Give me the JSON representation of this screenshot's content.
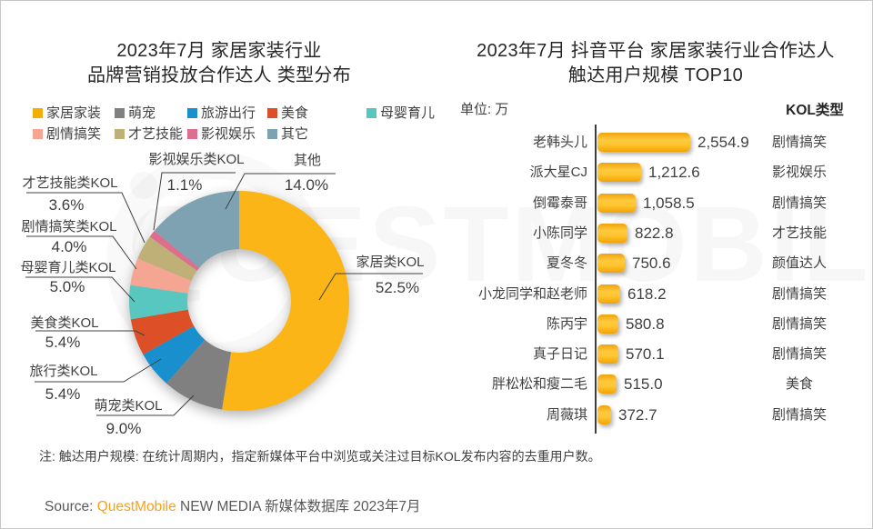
{
  "page": {
    "watermark_text": "QUESTMOBILE"
  },
  "left_panel": {
    "title_line1": "2023年7月 家居家装行业",
    "title_line2": "品牌营销投放合作达人 类型分布",
    "legend": [
      {
        "label": "家居家装",
        "color": "#F2AE07"
      },
      {
        "label": "萌宠",
        "color": "#808080"
      },
      {
        "label": "旅游出行",
        "color": "#1A8FCE"
      },
      {
        "label": "美食",
        "color": "#DD4F27"
      },
      {
        "label": "母婴育儿",
        "color": "#58C7C0"
      },
      {
        "label": "剧情搞笑",
        "color": "#F5A693"
      },
      {
        "label": "才艺技能",
        "color": "#BFB077"
      },
      {
        "label": "影视娱乐",
        "color": "#DE6E8D"
      },
      {
        "label": "其它",
        "color": "#7EA2B2"
      }
    ]
  },
  "right_panel": {
    "title_line1": "2023年7月 抖音平台 家居家装行业合作达人",
    "title_line2": "触达用户规模 TOP10",
    "unit_label": "单位: 万",
    "type_header": "KOL类型"
  },
  "chart_data": [
    {
      "type": "pie",
      "subtype": "donut",
      "title": "2023年7月 家居家装行业 品牌营销投放合作达人 类型分布",
      "start_angle_deg": 0,
      "direction": "clockwise",
      "slices": [
        {
          "label": "家居类KOL",
          "pct_label": "52.5%",
          "value": 52.5,
          "color": "#FBB517"
        },
        {
          "label": "萌宠类KOL",
          "pct_label": "9.0%",
          "value": 9.0,
          "color": "#808080"
        },
        {
          "label": "旅行类KOL",
          "pct_label": "5.4%",
          "value": 5.4,
          "color": "#1A8FCE"
        },
        {
          "label": "美食类KOL",
          "pct_label": "5.4%",
          "value": 5.4,
          "color": "#DD4F27"
        },
        {
          "label": "母婴育儿类KOL",
          "pct_label": "5.0%",
          "value": 5.0,
          "color": "#58C7C0"
        },
        {
          "label": "剧情搞笑类KOL",
          "pct_label": "4.0%",
          "value": 4.0,
          "color": "#F5A693"
        },
        {
          "label": "才艺技能类KOL",
          "pct_label": "3.6%",
          "value": 3.6,
          "color": "#BFB077"
        },
        {
          "label": "影视娱乐类KOL",
          "pct_label": "1.1%",
          "value": 1.1,
          "color": "#DE6E8D"
        },
        {
          "label": "其他",
          "pct_label": "14.0%",
          "value": 14.0,
          "color": "#7EA2B2"
        }
      ]
    },
    {
      "type": "bar",
      "orientation": "horizontal",
      "title": "2023年7月 抖音平台 家居家装行业合作达人 触达用户规模 TOP10",
      "unit": "万",
      "xlim": [
        0,
        2554.9
      ],
      "bar_color": "#FBB517",
      "categories": [
        "老韩头儿",
        "派大星CJ",
        "倒霉泰哥",
        "小陈同学",
        "夏冬冬",
        "小龙同学和赵老师",
        "陈丙宇",
        "真子日记",
        "胖松松和瘦二毛",
        "周薇琪"
      ],
      "values": [
        2554.9,
        1212.6,
        1058.5,
        822.8,
        750.6,
        618.2,
        580.8,
        570.1,
        515.0,
        372.7
      ],
      "value_labels": [
        "2,554.9",
        "1,212.6",
        "1,058.5",
        "822.8",
        "750.6",
        "618.2",
        "580.8",
        "570.1",
        "515.0",
        "372.7"
      ],
      "kol_types": [
        "剧情搞笑",
        "影视娱乐",
        "剧情搞笑",
        "才艺技能",
        "颜值达人",
        "剧情搞笑",
        "剧情搞笑",
        "剧情搞笑",
        "美食",
        "剧情搞笑"
      ]
    }
  ],
  "footer": {
    "note": "注: 触达用户规模: 在统计周期内，指定新媒体平台中浏览或关注过目标KOL发布内容的去重用户数。",
    "source_prefix": "Source: ",
    "source_brand": "QuestMobile",
    "source_rest": " NEW MEDIA 新媒体数据库 2023年7月",
    "brand_color": "#F7A11A"
  }
}
